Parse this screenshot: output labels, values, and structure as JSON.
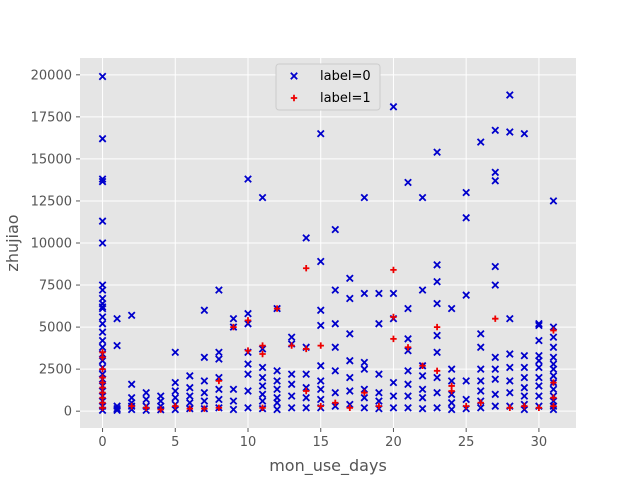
{
  "chart_data": {
    "type": "scatter",
    "title": "",
    "xlabel": "mon_use_days",
    "ylabel": "zhujiao",
    "xlim": [
      -1.55,
      32.55
    ],
    "ylim": [
      -1000,
      21000
    ],
    "x_ticks": [
      0,
      5,
      10,
      15,
      20,
      25,
      30
    ],
    "y_ticks": [
      0,
      2500,
      5000,
      7500,
      10000,
      12500,
      15000,
      17500,
      20000
    ],
    "x_tick_labels": [
      "0",
      "5",
      "10",
      "15",
      "20",
      "25",
      "30"
    ],
    "y_tick_labels": [
      "0",
      "2500",
      "5000",
      "7500",
      "10000",
      "12500",
      "15000",
      "17500",
      "20000"
    ],
    "grid": true,
    "legend_position": "upper center",
    "colors": {
      "background": "#e5e5e5",
      "grid": "#ffffff",
      "label0": "#0000cc",
      "label1": "#ee0000"
    },
    "series": [
      {
        "name": "label=0",
        "marker": "x",
        "x": [
          0,
          0,
          0,
          0,
          0,
          0,
          0,
          0,
          0,
          0,
          0,
          0,
          0,
          0,
          0,
          0,
          0,
          0,
          0,
          0,
          0,
          0,
          0,
          0,
          0,
          0,
          0,
          0,
          1,
          1,
          1,
          1,
          1,
          2,
          2,
          2,
          2,
          2,
          2,
          3,
          3,
          3,
          3,
          4,
          4,
          4,
          4,
          5,
          5,
          5,
          5,
          5,
          5,
          6,
          6,
          6,
          6,
          6,
          7,
          7,
          7,
          7,
          7,
          7,
          8,
          8,
          8,
          8,
          8,
          8,
          8,
          9,
          9,
          9,
          9,
          9,
          10,
          10,
          10,
          10,
          10,
          10,
          10,
          10,
          11,
          11,
          11,
          11,
          11,
          11,
          11,
          11,
          12,
          12,
          12,
          12,
          12,
          12,
          12,
          13,
          13,
          13,
          13,
          13,
          13,
          14,
          14,
          14,
          14,
          14,
          14,
          15,
          15,
          15,
          15,
          15,
          15,
          15,
          15,
          15,
          16,
          16,
          16,
          16,
          16,
          16,
          16,
          17,
          17,
          17,
          17,
          17,
          17,
          17,
          18,
          18,
          18,
          18,
          18,
          18,
          18,
          19,
          19,
          19,
          19,
          19,
          19,
          20,
          20,
          20,
          20,
          20,
          20,
          21,
          21,
          21,
          21,
          21,
          21,
          21,
          21,
          22,
          22,
          22,
          22,
          22,
          22,
          22,
          23,
          23,
          23,
          23,
          23,
          23,
          23,
          23,
          23,
          24,
          24,
          24,
          24,
          24,
          24,
          25,
          25,
          25,
          25,
          25,
          25,
          26,
          26,
          26,
          26,
          26,
          26,
          26,
          26,
          27,
          27,
          27,
          27,
          27,
          27,
          27,
          27,
          27,
          27,
          28,
          28,
          28,
          28,
          28,
          28,
          28,
          28,
          29,
          29,
          29,
          29,
          29,
          29,
          29,
          29,
          30,
          30,
          30,
          30,
          30,
          30,
          30,
          30,
          30,
          30,
          31,
          31,
          31,
          31,
          31,
          31,
          31,
          31,
          31,
          31,
          31,
          31,
          31,
          31
        ],
        "y": [
          19900,
          16200,
          13800,
          13650,
          11300,
          10000,
          7500,
          7200,
          6700,
          6400,
          6200,
          6100,
          5600,
          5200,
          4700,
          4200,
          3800,
          3400,
          3000,
          2600,
          2200,
          1900,
          1500,
          1200,
          900,
          600,
          300,
          50,
          5500,
          3900,
          300,
          150,
          50,
          5700,
          1600,
          800,
          500,
          300,
          100,
          1100,
          700,
          300,
          50,
          900,
          600,
          300,
          80,
          3500,
          1700,
          1200,
          800,
          400,
          100,
          2100,
          1400,
          900,
          500,
          150,
          6000,
          3200,
          1800,
          1100,
          600,
          150,
          7200,
          3500,
          3100,
          2000,
          1300,
          700,
          200,
          5500,
          5000,
          1300,
          600,
          100,
          13800,
          5800,
          5200,
          3500,
          2800,
          2200,
          1200,
          200,
          12700,
          3700,
          2600,
          2000,
          1500,
          1000,
          600,
          150,
          6100,
          2400,
          1800,
          1300,
          800,
          500,
          100,
          4400,
          4000,
          2200,
          1600,
          900,
          200,
          10300,
          3800,
          2200,
          1400,
          800,
          200,
          16500,
          8900,
          6000,
          5100,
          2700,
          1800,
          1300,
          700,
          200,
          10800,
          7200,
          5200,
          3800,
          2400,
          1100,
          300,
          7900,
          6700,
          4600,
          3000,
          2000,
          1200,
          400,
          12700,
          7000,
          2900,
          2500,
          1300,
          800,
          200,
          7000,
          5200,
          2200,
          1100,
          600,
          150,
          18100,
          7000,
          5500,
          1700,
          900,
          200,
          13600,
          6100,
          4300,
          3600,
          2400,
          1600,
          900,
          200,
          12700,
          7200,
          2700,
          2100,
          1300,
          800,
          150,
          15400,
          8700,
          7700,
          6400,
          4500,
          3500,
          2000,
          1100,
          200,
          6100,
          2500,
          1800,
          1000,
          500,
          100,
          13000,
          11500,
          6900,
          1800,
          700,
          150,
          16000,
          4600,
          3800,
          2500,
          1800,
          1200,
          600,
          200,
          16700,
          14200,
          13700,
          8600,
          7500,
          3200,
          2500,
          1900,
          1000,
          300,
          18800,
          16600,
          5500,
          3400,
          2600,
          1800,
          1100,
          300,
          16500,
          3300,
          2600,
          2000,
          1400,
          900,
          400,
          100,
          5200,
          5100,
          4200,
          3300,
          3000,
          2600,
          2000,
          1500,
          900,
          300,
          12500,
          5000,
          4400,
          3800,
          3200,
          2800,
          2500,
          2100,
          1700,
          1300,
          900,
          600,
          300,
          100
        ]
      },
      {
        "name": "label=1",
        "marker": "+",
        "x": [
          0,
          0,
          0,
          0,
          0,
          0,
          0,
          0,
          0,
          0,
          2,
          3,
          4,
          5,
          6,
          7,
          8,
          8,
          9,
          10,
          10,
          11,
          11,
          11,
          12,
          13,
          14,
          14,
          14,
          15,
          15,
          16,
          17,
          18,
          19,
          20,
          20,
          20,
          21,
          22,
          23,
          23,
          24,
          24,
          25,
          26,
          27,
          28,
          29,
          30,
          31,
          31,
          31,
          31
        ],
        "y": [
          3500,
          3200,
          2500,
          2000,
          1700,
          1400,
          1100,
          800,
          500,
          200,
          300,
          200,
          100,
          300,
          150,
          150,
          1800,
          200,
          5000,
          5400,
          3600,
          3900,
          3400,
          200,
          6100,
          3900,
          8500,
          3700,
          1200,
          3900,
          300,
          500,
          200,
          1100,
          300,
          8400,
          5600,
          4300,
          3800,
          2700,
          5000,
          2400,
          1500,
          1200,
          300,
          500,
          5500,
          200,
          300,
          200,
          4800,
          1700,
          800,
          300
        ]
      }
    ]
  }
}
